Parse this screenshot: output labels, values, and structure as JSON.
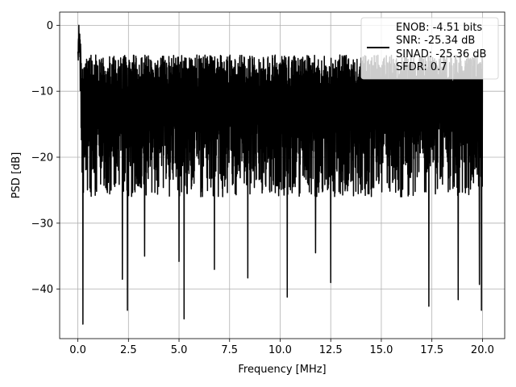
{
  "chart_data": {
    "type": "line",
    "title": "",
    "xlabel": "Frequency [MHz]",
    "ylabel": "PSD [dB]",
    "xlim": [
      -0.9,
      21.1
    ],
    "ylim": [
      -47.5,
      2.0
    ],
    "xticks": [
      0.0,
      2.5,
      5.0,
      7.5,
      10.0,
      12.5,
      15.0,
      17.5,
      20.0
    ],
    "xtick_labels": [
      "0.0",
      "2.5",
      "5.0",
      "7.5",
      "10.0",
      "12.5",
      "15.0",
      "17.5",
      "20.0"
    ],
    "yticks": [
      0,
      -10,
      -20,
      -30,
      -40
    ],
    "ytick_labels": [
      "0",
      "−10",
      "−20",
      "−30",
      "−40"
    ],
    "grid": true,
    "legend_position": "top-right",
    "series": [
      {
        "name": "ENOB: -4.51 bits\nSNR: -25.34 dB\nSINAD: -25.36 dB\nSFDR: 0.7",
        "color": "#000000",
        "x_range": [
          0.0,
          20.0
        ],
        "y_envelope": {
          "upper_approx": -5,
          "lower_typical": -25,
          "peak": {
            "x": 0.05,
            "y": 0.0
          }
        },
        "notable_dips": [
          {
            "x": 0.25,
            "y": -45.3
          },
          {
            "x": 2.2,
            "y": -38.5
          },
          {
            "x": 2.45,
            "y": -43.2
          },
          {
            "x": 3.3,
            "y": -35.0
          },
          {
            "x": 5.0,
            "y": -35.8
          },
          {
            "x": 5.25,
            "y": -44.5
          },
          {
            "x": 6.75,
            "y": -37.0
          },
          {
            "x": 8.4,
            "y": -38.3
          },
          {
            "x": 10.35,
            "y": -41.2
          },
          {
            "x": 11.75,
            "y": -34.5
          },
          {
            "x": 12.5,
            "y": -39.0
          },
          {
            "x": 17.35,
            "y": -42.6
          },
          {
            "x": 18.8,
            "y": -41.6
          },
          {
            "x": 19.85,
            "y": -39.3
          },
          {
            "x": 19.95,
            "y": -43.2
          }
        ]
      }
    ],
    "legend_entries": [
      "ENOB: -4.51 bits",
      "SNR: -25.34 dB",
      "SINAD: -25.36 dB",
      "SFDR: 0.7"
    ]
  }
}
